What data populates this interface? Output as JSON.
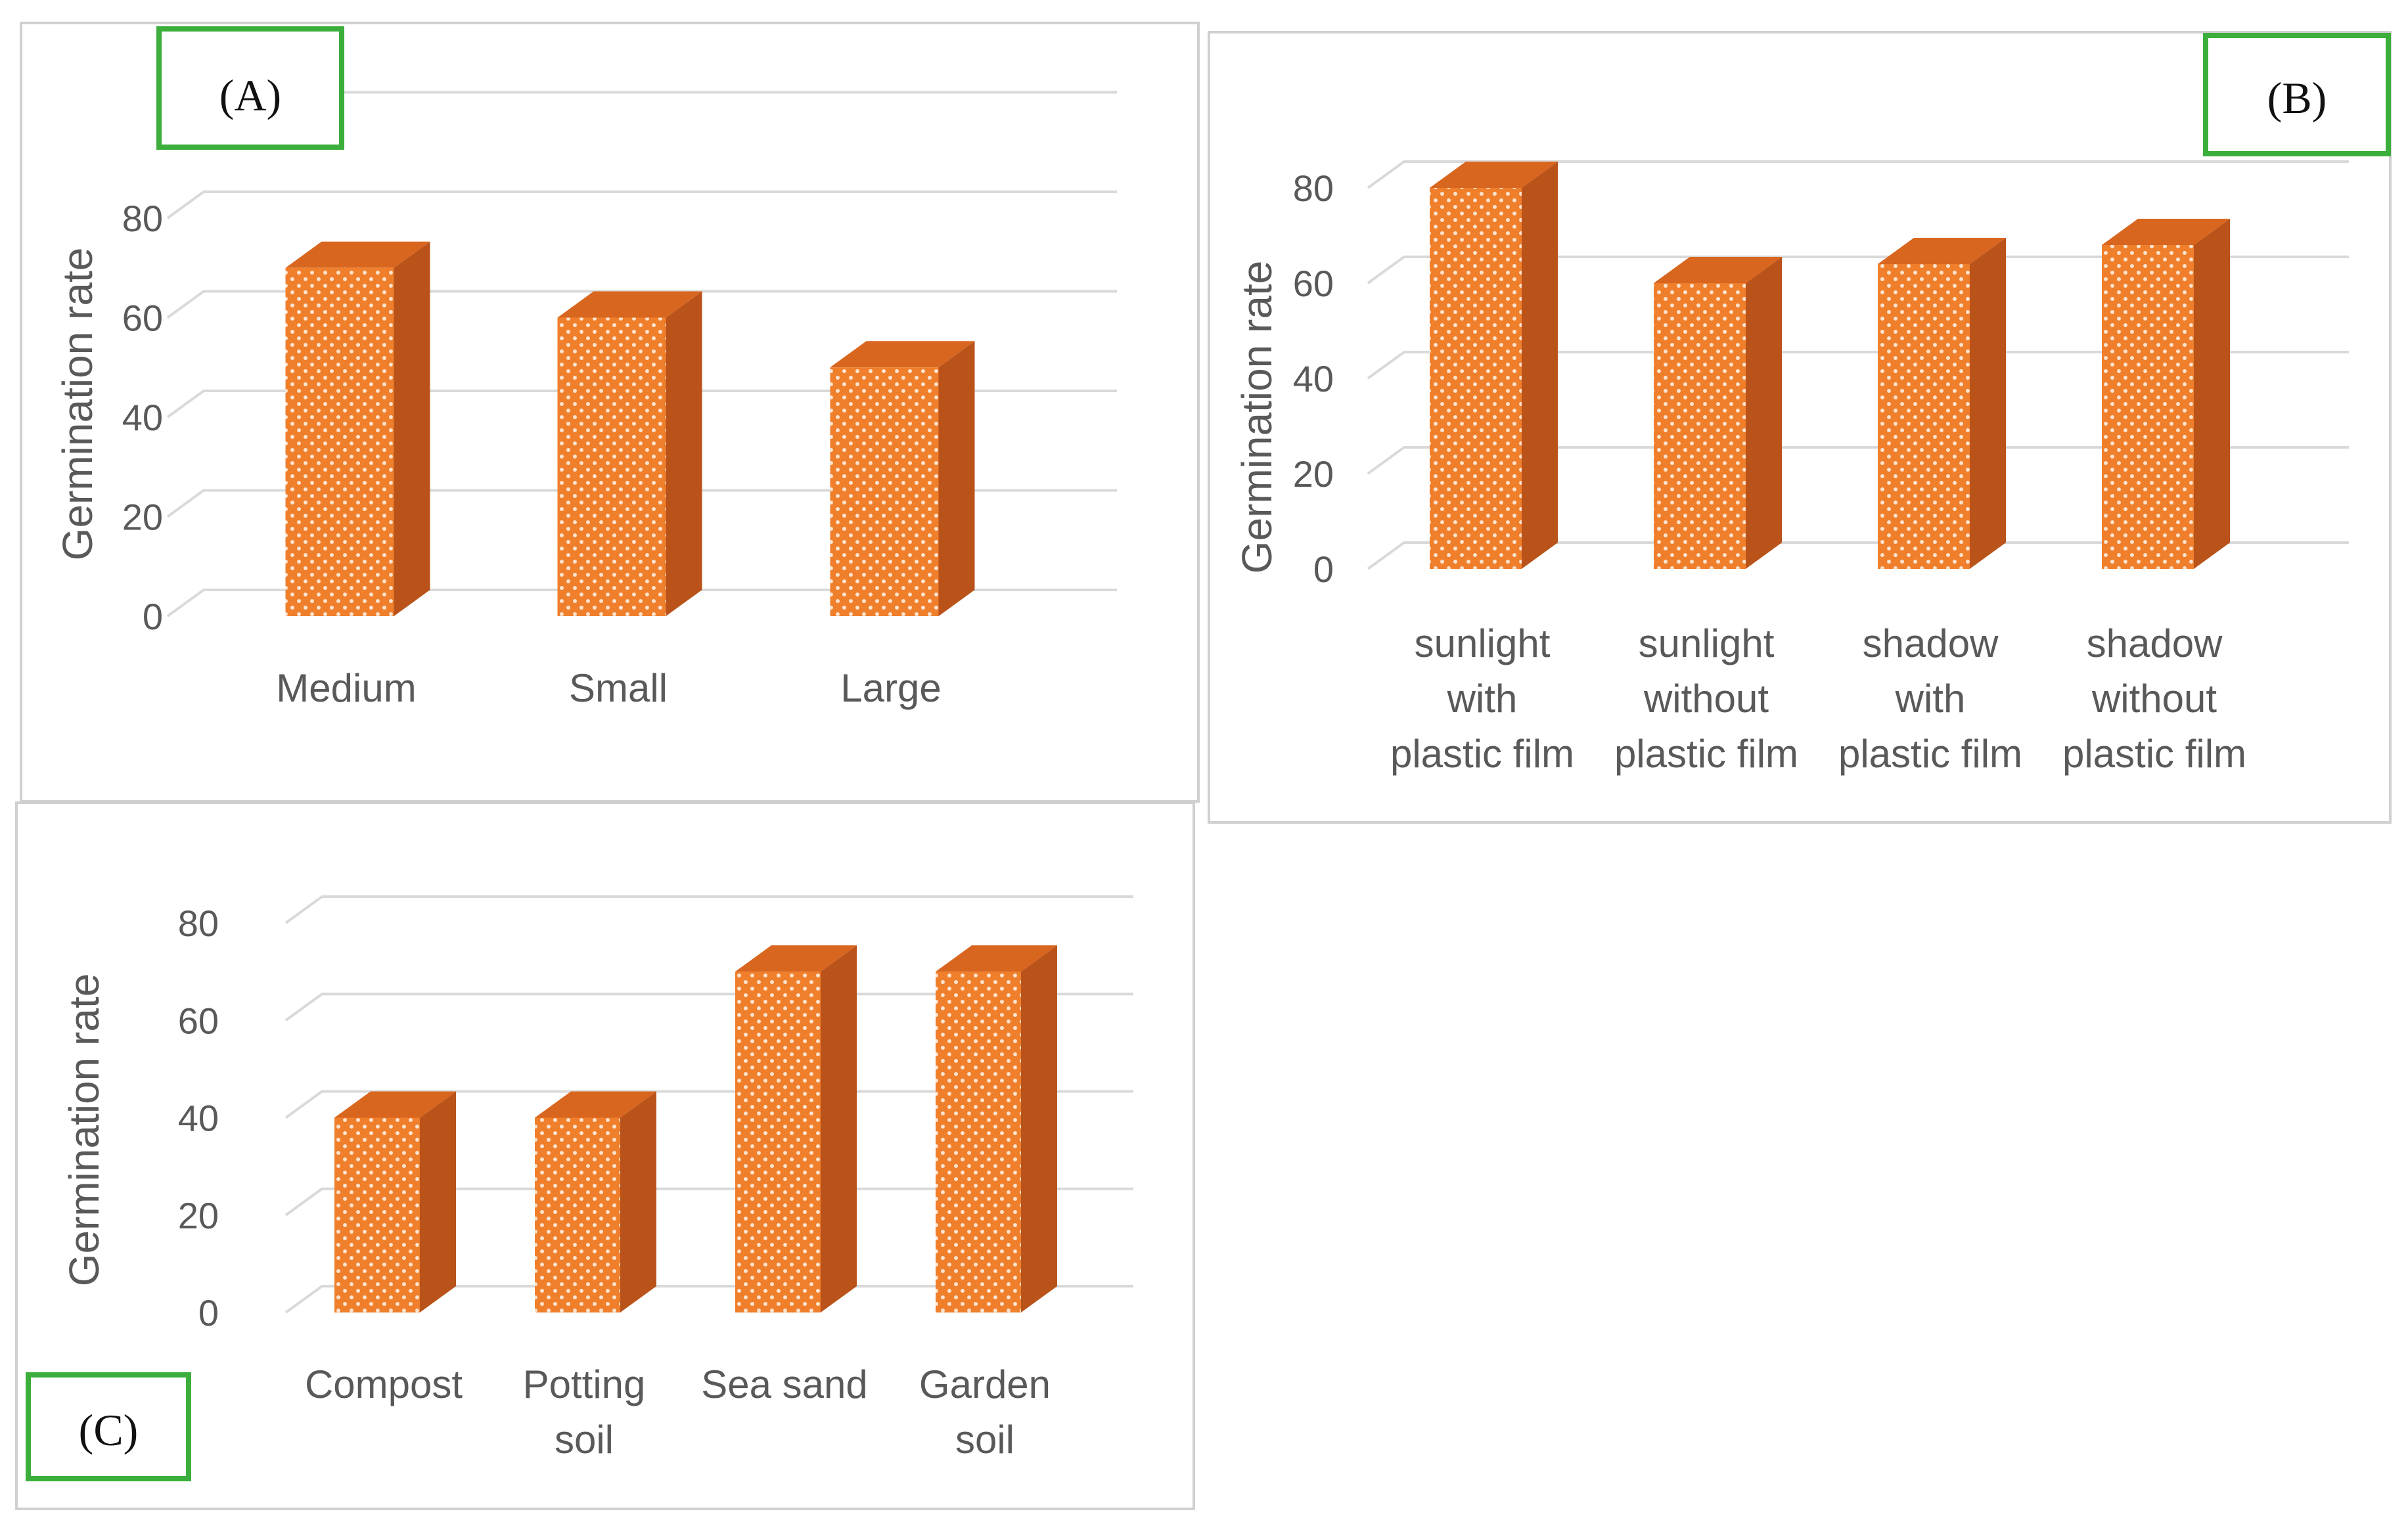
{
  "chart_data": [
    {
      "type": "bar",
      "panel_label": "(A)",
      "ylabel": "Germination rate",
      "categories": [
        "Medium",
        "Small",
        "Large"
      ],
      "values": [
        70,
        60,
        50
      ],
      "yticks": [
        "0",
        "20",
        "40",
        "60",
        "80"
      ],
      "ylim": [
        0,
        100
      ],
      "grid": true,
      "style": "3d-column",
      "legend": "none"
    },
    {
      "type": "bar",
      "panel_label": "(B)",
      "ylabel": "Germination rate",
      "categories": [
        "sunlight with plastic film",
        "sunlight without plastic film",
        "shadow with plastic film",
        "shadow without plastic film"
      ],
      "category_lines": [
        [
          "sunlight",
          "with",
          "plastic film"
        ],
        [
          "sunlight",
          "without",
          "plastic film"
        ],
        [
          "shadow",
          "with",
          "plastic film"
        ],
        [
          "shadow",
          "without",
          "plastic film"
        ]
      ],
      "values": [
        80,
        60,
        64,
        68
      ],
      "yticks": [
        "0",
        "20",
        "40",
        "60",
        "80"
      ],
      "ylim": [
        0,
        80
      ],
      "grid": true,
      "style": "3d-column",
      "legend": "none"
    },
    {
      "type": "bar",
      "panel_label": "(C)",
      "ylabel": "Germination rate",
      "categories": [
        "Compost",
        "Potting soil",
        "Sea sand",
        "Garden soil"
      ],
      "category_lines": [
        [
          "Compost"
        ],
        [
          "Potting",
          "soil"
        ],
        [
          "Sea sand"
        ],
        [
          "Garden",
          "soil"
        ]
      ],
      "values": [
        40,
        40,
        70,
        70
      ],
      "yticks": [
        "0",
        "20",
        "40",
        "60",
        "80"
      ],
      "ylim": [
        0,
        80
      ],
      "grid": true,
      "style": "3d-column",
      "legend": "none"
    }
  ],
  "colors": {
    "bar_front": "#f07f2c",
    "bar_side": "#b9531a",
    "bar_top": "#d9661f",
    "bar_dots": "#ffffff",
    "grid": "#d9d9d9",
    "panel_border": "#d0d0d0",
    "tag_border": "#3cae3c",
    "text": "#595959"
  }
}
